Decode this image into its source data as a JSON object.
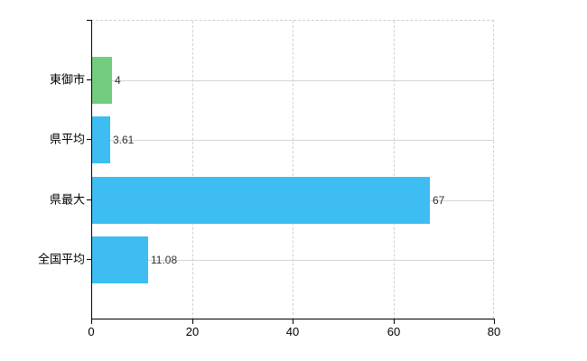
{
  "chart_data": {
    "type": "bar",
    "orientation": "horizontal",
    "title": "",
    "xlabel": "",
    "ylabel": "",
    "categories": [
      "東御市",
      "県平均",
      "県最大",
      "全国平均"
    ],
    "values": [
      4,
      3.61,
      67,
      11.08
    ],
    "value_labels": [
      "4",
      "3.61",
      "67",
      "11.08"
    ],
    "bar_colors": [
      "#74cc80",
      "#3dbdf1",
      "#3dbdf1",
      "#3dbdf1"
    ],
    "xlim": [
      0,
      80
    ],
    "x_ticks": [
      "0",
      "20",
      "40",
      "60",
      "80"
    ],
    "x_tick_values": [
      0,
      20,
      40,
      60,
      80
    ],
    "legend": "none",
    "grid": {
      "vertical_gridlines_dashed": true,
      "horizontal_category_gridlines": true,
      "top_right_border_dashed": true
    },
    "colors": {
      "background": "#ffffff",
      "axis": "#000000",
      "gridline": "#d4d4d4",
      "dashed_border": "#cfcfcf",
      "tick_text": "#000000",
      "value_text": "#333333",
      "bar_green": "#74cc80",
      "bar_blue": "#3dbdf1"
    }
  }
}
